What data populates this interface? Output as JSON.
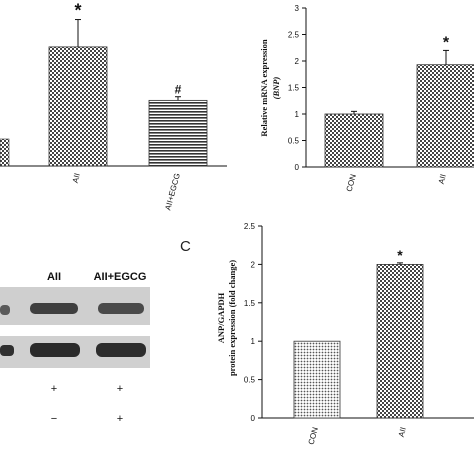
{
  "chart_data": [
    {
      "type": "bar",
      "panel": "top-left",
      "categories": [
        "AII",
        "AII+EGCG"
      ],
      "values": [
        1.96,
        1.08
      ],
      "errors": [
        0.45,
        0.06
      ],
      "annotations": [
        "*",
        "#"
      ],
      "ylim": [
        0,
        2.6
      ]
    },
    {
      "type": "bar",
      "panel": "top-right",
      "categories": [
        "CON",
        "AII"
      ],
      "values": [
        1.0,
        1.93
      ],
      "errors": [
        0.05,
        0.27
      ],
      "annotations": [
        "",
        "*"
      ],
      "ylabel": "Relative mRNA expression",
      "ylabel_sub": "(BNP)",
      "ylim": [
        0,
        3
      ],
      "yticks": [
        "0",
        "0.5",
        "1",
        "1.5",
        "2",
        "2.5",
        "3"
      ]
    },
    {
      "type": "bar",
      "panel": "bottom-right",
      "panel_label": "C",
      "categories": [
        "CON",
        "AII"
      ],
      "values": [
        1.0,
        2.0
      ],
      "errors": [
        0.0,
        0.02
      ],
      "annotations": [
        "",
        "*"
      ],
      "ylabel": "ANP/GAPDH",
      "ylabel_sub": "protein expression (fold change)",
      "ylim": [
        0,
        2.5
      ],
      "yticks": [
        "0",
        "0.5",
        "1",
        "1.5",
        "2",
        "2.5"
      ]
    }
  ],
  "blot": {
    "column_labels": [
      "AII",
      "AII+EGCG"
    ],
    "sign_rows": [
      [
        "+",
        "+"
      ],
      [
        "−",
        "+"
      ]
    ]
  },
  "colors": {
    "bar_fill": "#8a8a8a",
    "axis": "#111111",
    "blot_bg": "#c8c8c8",
    "band": "#3a3a3a"
  }
}
